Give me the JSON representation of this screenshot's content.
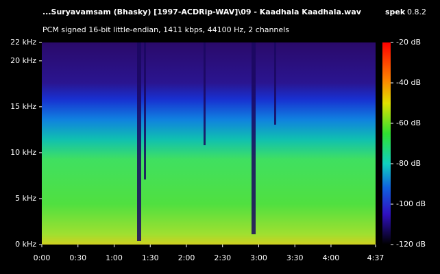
{
  "header": {
    "title": "...Suryavamsam (Bhasky) [1997-ACDRip-WAV]\\09 - Kaadhala Kaadhala.wav",
    "app": "spek",
    "version": "0.8.2",
    "subtitle": "PCM signed 16-bit little-endian, 1411 kbps, 44100 Hz, 2 channels"
  },
  "chart_data": {
    "type": "spectrogram",
    "xlim": [
      0,
      277
    ],
    "xticks": [
      {
        "value": 0,
        "label": "0:00"
      },
      {
        "value": 30,
        "label": "0:30"
      },
      {
        "value": 60,
        "label": "1:00"
      },
      {
        "value": 90,
        "label": "1:30"
      },
      {
        "value": 120,
        "label": "2:00"
      },
      {
        "value": 150,
        "label": "2:30"
      },
      {
        "value": 180,
        "label": "3:00"
      },
      {
        "value": 210,
        "label": "3:30"
      },
      {
        "value": 240,
        "label": "4:00"
      },
      {
        "value": 277,
        "label": "4:37"
      }
    ],
    "ylim": [
      0,
      22
    ],
    "yticks": [
      {
        "value": 0,
        "label": "0 kHz"
      },
      {
        "value": 5,
        "label": "5 kHz"
      },
      {
        "value": 10,
        "label": "10 kHz"
      },
      {
        "value": 15,
        "label": "15 kHz"
      },
      {
        "value": 20,
        "label": "20 kHz"
      },
      {
        "value": 22,
        "label": "22 kHz"
      }
    ],
    "colorbar": {
      "lim": [
        -120,
        -20
      ],
      "ticks": [
        {
          "value": -20,
          "label": "-20 dB"
        },
        {
          "value": -40,
          "label": "-40 dB"
        },
        {
          "value": -60,
          "label": "-60 dB"
        },
        {
          "value": -80,
          "label": "-80 dB"
        },
        {
          "value": -100,
          "label": "-100 dB"
        },
        {
          "value": -120,
          "label": "-120 dB"
        }
      ]
    }
  }
}
